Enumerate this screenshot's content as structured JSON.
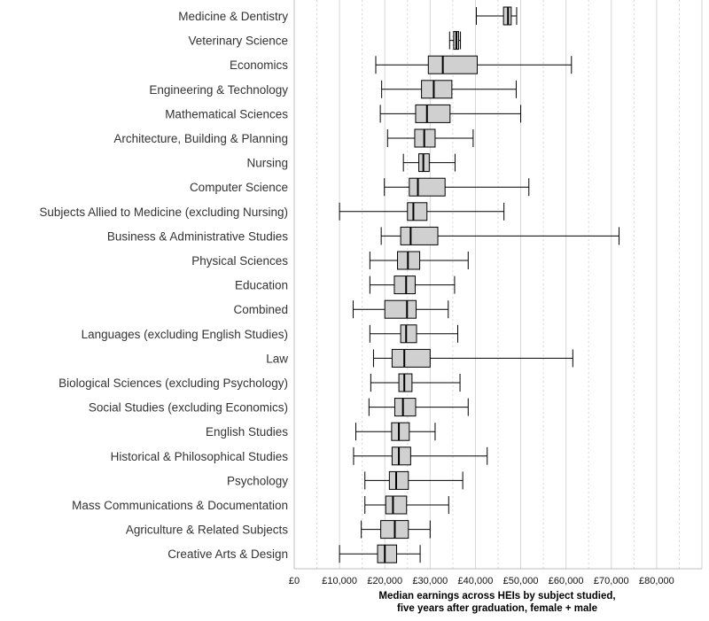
{
  "chart_data": {
    "type": "boxplot",
    "orientation": "horizontal",
    "xlabel": [
      "Median earnings across HEIs by subject studied,",
      "five years after graduation, female + male"
    ],
    "xlim": [
      0,
      90000
    ],
    "x_ticks": [
      0,
      10000,
      20000,
      30000,
      40000,
      50000,
      60000,
      70000,
      80000
    ],
    "x_tick_labels": [
      "£0",
      "£10,000",
      "£20,000",
      "£30,000",
      "£40,000",
      "£50,000",
      "£60,000",
      "£70,000",
      "£80,000"
    ],
    "grid": true,
    "box_fill": "#d0d0d0",
    "grid_color": "#d6d6d6",
    "categories": [
      "Medicine & Dentistry",
      "Veterinary Science",
      "Economics",
      "Engineering & Technology",
      "Mathematical Sciences",
      "Architecture, Building & Planning",
      "Nursing",
      "Computer Science",
      "Subjects Allied to Medicine (excluding Nursing)",
      "Business & Administrative Studies",
      "Physical Sciences",
      "Education",
      "Combined",
      "Languages (excluding English Studies)",
      "Law",
      "Biological Sciences (excluding Psychology)",
      "Social Studies (excluding Economics)",
      "English Studies",
      "Historical & Philosophical Studies",
      "Psychology",
      "Mass Communications & Documentation",
      "Agriculture & Related Subjects",
      "Creative Arts & Design"
    ],
    "boxes": [
      {
        "min": 40200,
        "q1": 46200,
        "median": 47200,
        "q3": 47900,
        "max": 49100
      },
      {
        "min": 34300,
        "q1": 35200,
        "median": 35800,
        "q3": 36300,
        "max": 36700
      },
      {
        "min": 18000,
        "q1": 29600,
        "median": 32800,
        "q3": 40400,
        "max": 61200
      },
      {
        "min": 19300,
        "q1": 28100,
        "median": 30800,
        "q3": 34800,
        "max": 49000
      },
      {
        "min": 19000,
        "q1": 26800,
        "median": 29300,
        "q3": 34400,
        "max": 50000
      },
      {
        "min": 20600,
        "q1": 26600,
        "median": 28700,
        "q3": 31100,
        "max": 39500
      },
      {
        "min": 24100,
        "q1": 27500,
        "median": 28500,
        "q3": 29800,
        "max": 35500
      },
      {
        "min": 19900,
        "q1": 25400,
        "median": 27300,
        "q3": 33300,
        "max": 51800
      },
      {
        "min": 10000,
        "q1": 25000,
        "median": 26300,
        "q3": 29300,
        "max": 46300
      },
      {
        "min": 19200,
        "q1": 23500,
        "median": 25700,
        "q3": 31700,
        "max": 71700
      },
      {
        "min": 16700,
        "q1": 22800,
        "median": 25100,
        "q3": 27700,
        "max": 38400
      },
      {
        "min": 16700,
        "q1": 22100,
        "median": 24700,
        "q3": 26700,
        "max": 35400
      },
      {
        "min": 13000,
        "q1": 20000,
        "median": 24900,
        "q3": 26900,
        "max": 34000
      },
      {
        "min": 16700,
        "q1": 23500,
        "median": 24700,
        "q3": 27000,
        "max": 36100
      },
      {
        "min": 17500,
        "q1": 21600,
        "median": 24300,
        "q3": 30000,
        "max": 61500
      },
      {
        "min": 16900,
        "q1": 23100,
        "median": 24300,
        "q3": 26000,
        "max": 36600
      },
      {
        "min": 16500,
        "q1": 22200,
        "median": 24000,
        "q3": 26800,
        "max": 38400
      },
      {
        "min": 13600,
        "q1": 21500,
        "median": 23100,
        "q3": 25400,
        "max": 31100
      },
      {
        "min": 13100,
        "q1": 21600,
        "median": 23100,
        "q3": 25700,
        "max": 42600
      },
      {
        "min": 15600,
        "q1": 21000,
        "median": 22500,
        "q3": 25200,
        "max": 37200
      },
      {
        "min": 15600,
        "q1": 20200,
        "median": 21800,
        "q3": 24800,
        "max": 34100
      },
      {
        "min": 14800,
        "q1": 19100,
        "median": 22200,
        "q3": 25200,
        "max": 30000
      },
      {
        "min": 10000,
        "q1": 18400,
        "median": 20000,
        "q3": 22600,
        "max": 27800
      }
    ]
  }
}
